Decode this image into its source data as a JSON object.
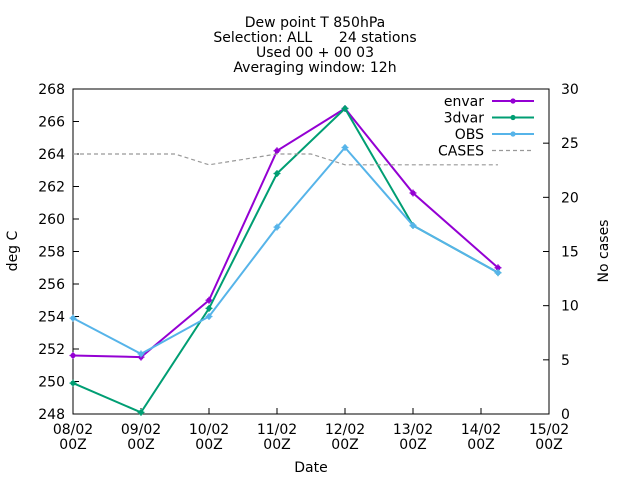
{
  "chart_data": {
    "type": "line",
    "title_lines": [
      "Dew point T 850hPa",
      "Selection: ALL      24 stations",
      "Used 00 + 00 03",
      "Averaging window: 12h"
    ],
    "xlabel": "Date",
    "ylabel": "deg C",
    "y2label": "No cases",
    "x_ticks": [
      {
        "x": 0,
        "line1": "08/02",
        "line2": "00Z"
      },
      {
        "x": 1,
        "line1": "09/02",
        "line2": "00Z"
      },
      {
        "x": 2,
        "line1": "10/02",
        "line2": "00Z"
      },
      {
        "x": 3,
        "line1": "11/02",
        "line2": "00Z"
      },
      {
        "x": 4,
        "line1": "12/02",
        "line2": "00Z"
      },
      {
        "x": 5,
        "line1": "13/02",
        "line2": "00Z"
      },
      {
        "x": 6,
        "line1": "14/02",
        "line2": "00Z"
      },
      {
        "x": 7,
        "line1": "15/02",
        "line2": "00Z"
      }
    ],
    "xlim": [
      0,
      7
    ],
    "ylim": [
      248,
      268
    ],
    "yticks": [
      248,
      250,
      252,
      254,
      256,
      258,
      260,
      262,
      264,
      266,
      268
    ],
    "y2lim": [
      0,
      30
    ],
    "y2ticks": [
      0,
      5,
      10,
      15,
      20,
      25,
      30
    ],
    "legend_position": "top-right",
    "series": [
      {
        "name": "envar",
        "color": "#9400d3",
        "axis": "y1",
        "dashed": false,
        "x": [
          0,
          1,
          2,
          3,
          4,
          5,
          6.25
        ],
        "y": [
          251.6,
          251.5,
          255.0,
          264.2,
          266.8,
          261.6,
          257.0
        ]
      },
      {
        "name": "3dvar",
        "color": "#009e73",
        "axis": "y1",
        "dashed": false,
        "x": [
          0,
          1,
          2,
          3,
          4,
          5,
          6.25
        ],
        "y": [
          249.9,
          248.1,
          254.5,
          262.8,
          266.8,
          259.6,
          256.7
        ]
      },
      {
        "name": "OBS",
        "color": "#56b4e9",
        "axis": "y1",
        "dashed": false,
        "x": [
          0,
          1,
          2,
          3,
          4,
          5,
          6.25
        ],
        "y": [
          253.9,
          251.7,
          254.0,
          259.5,
          264.4,
          259.6,
          256.7
        ]
      },
      {
        "name": "CASES",
        "color": "#999999",
        "axis": "y2",
        "dashed": true,
        "x": [
          0,
          1,
          1.5,
          2,
          2.5,
          3,
          3.5,
          4,
          4.5,
          5,
          5.5,
          6,
          6.25
        ],
        "y": [
          24,
          24,
          24,
          23,
          23.5,
          24,
          24,
          23,
          23,
          23,
          23,
          23,
          23
        ]
      }
    ]
  }
}
